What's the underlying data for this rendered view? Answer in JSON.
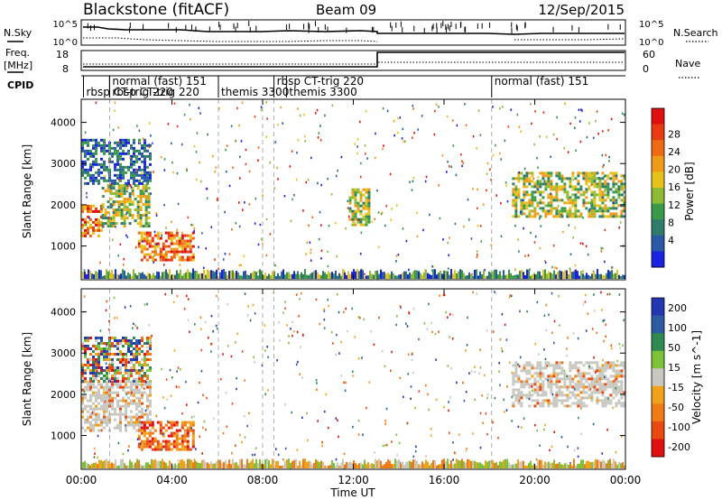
{
  "header": {
    "station": "Blackstone (fitACF)",
    "beam": "Beam 09",
    "date": "12/Sep/2015"
  },
  "top_labels": {
    "nsky": "N.Sky",
    "nsearch": "N.Search",
    "freq": "Freq.",
    "freq_unit": "[MHz]",
    "nave": "Nave",
    "cpid": "CPID",
    "nsky_ticks": [
      "10^5",
      "10^0"
    ],
    "nsearch_ticks": [
      "10^5",
      "10^0"
    ],
    "freq_ticks": [
      "18",
      "8"
    ],
    "nave_ticks": [
      "60",
      "0"
    ]
  },
  "cpid_segments": [
    {
      "label": "rbsp CT-trig 220",
      "hour": 0.1,
      "row": 2
    },
    {
      "label": "normal (fast) 151",
      "hour": 1.25,
      "row": 1
    },
    {
      "label": "rbsp CT-trig 220",
      "hour": 1.25,
      "row": 2
    },
    {
      "label": "themis 3300",
      "hour": 6.05,
      "row": 2
    },
    {
      "label": "rbsp CT-trig 220",
      "hour": 8.5,
      "row": 1
    },
    {
      "label": "themis 3300",
      "hour": 9.05,
      "row": 2
    },
    {
      "label": "normal (fast) 151",
      "hour": 18.1,
      "row": 1
    }
  ],
  "colors": {
    "frame": "#000000",
    "gridline": "#9a9a9a"
  },
  "chart_data": [
    {
      "type": "heatmap",
      "title": "Power",
      "xlabel": "Time UT",
      "ylabel": "Slant Range [km]",
      "colorbar_label": "Power [dB]",
      "x_ticks": [
        "00:00",
        "04:00",
        "08:00",
        "12:00",
        "16:00",
        "20:00",
        "00:00"
      ],
      "xlim_hours": [
        0,
        24
      ],
      "y_ticks": [
        1000,
        2000,
        3000,
        4000
      ],
      "ylim": [
        180,
        4560
      ],
      "colorbar_ticks": [
        "4",
        "8",
        "12",
        "16",
        "20",
        "24",
        "28"
      ],
      "colorbar_colors": [
        "#1a24e0",
        "#2a59a8",
        "#2f7a6a",
        "#3a9a4a",
        "#8dbb32",
        "#e7c21a",
        "#f09a1a",
        "#f06a14",
        "#ea3a12",
        "#e01010"
      ],
      "echo_regions": [
        {
          "t0": 0.0,
          "t1": 0.9,
          "r0": 1250,
          "r1": 2000,
          "level": "high"
        },
        {
          "t0": 0.9,
          "t1": 3.0,
          "r0": 1500,
          "r1": 2500,
          "level": "mid"
        },
        {
          "t0": 2.5,
          "t1": 5.0,
          "r0": 650,
          "r1": 1350,
          "level": "high"
        },
        {
          "t0": 0.0,
          "t1": 3.0,
          "r0": 2500,
          "r1": 3600,
          "level": "low"
        },
        {
          "t0": 11.8,
          "t1": 12.7,
          "r0": 1500,
          "r1": 2400,
          "level": "mid"
        },
        {
          "t0": 19.0,
          "t1": 23.9,
          "r0": 1700,
          "r1": 2800,
          "level": "mid"
        }
      ]
    },
    {
      "type": "heatmap",
      "title": "Velocity",
      "xlabel": "Time UT",
      "ylabel": "Slant Range [km]",
      "colorbar_label": "Velocity [m s^-1]",
      "x_ticks": [
        "00:00",
        "04:00",
        "08:00",
        "12:00",
        "16:00",
        "20:00",
        "00:00"
      ],
      "xlim_hours": [
        0,
        24
      ],
      "y_ticks": [
        1000,
        2000,
        3000,
        4000
      ],
      "ylim": [
        180,
        4560
      ],
      "colorbar_ticks": [
        "200",
        "100",
        "50",
        "15",
        "-15",
        "-50",
        "-100",
        "-200"
      ],
      "colorbar_colors": [
        "#2136b0",
        "#2d5aa0",
        "#2e8a50",
        "#7ec23a",
        "#c8c8c0",
        "#f2a21a",
        "#f07a14",
        "#ea4a12",
        "#e01010"
      ],
      "echo_regions": [
        {
          "t0": 0.0,
          "t1": 3.0,
          "r0": 1100,
          "r1": 2400,
          "level": "ground"
        },
        {
          "t0": 2.5,
          "t1": 5.0,
          "r0": 650,
          "r1": 1350,
          "level": "neg"
        },
        {
          "t0": 0.0,
          "t1": 3.0,
          "r0": 2300,
          "r1": 3400,
          "level": "mixed"
        },
        {
          "t0": 19.0,
          "t1": 23.9,
          "r0": 1700,
          "r1": 2800,
          "level": "ground"
        }
      ]
    }
  ]
}
